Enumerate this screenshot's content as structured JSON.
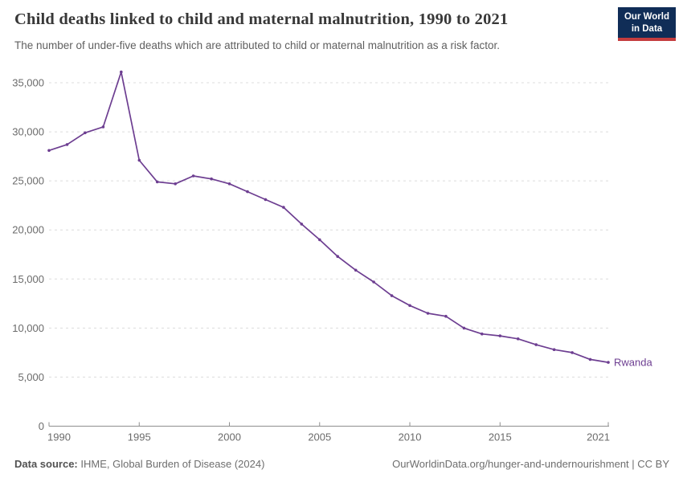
{
  "header": {
    "title": "Child deaths linked to child and maternal malnutrition, 1990 to 2021",
    "subtitle": "The number of under-five deaths which are attributed to child or maternal malnutrition as a risk factor."
  },
  "logo": {
    "line1": "Our World",
    "line2": "in Data"
  },
  "footer": {
    "source_label": "Data source:",
    "source_text": " IHME, Global Burden of Disease (2024)",
    "credit": "OurWorldinData.org/hunger-and-undernourishment | CC BY"
  },
  "colors": {
    "series_line": "#6d3e91",
    "gridline": "#dcdcdc",
    "axis": "#8f8f8f",
    "tick_label": "#6b6b6b",
    "logo_bg": "#102d57",
    "logo_red": "#c43c3e"
  },
  "chart_data": {
    "type": "line",
    "title": "Child deaths linked to child and maternal malnutrition, 1990 to 2021",
    "subtitle": "The number of under-five deaths which are attributed to child or maternal malnutrition as a risk factor.",
    "xlabel": "",
    "ylabel": "",
    "x": [
      1990,
      1991,
      1992,
      1993,
      1994,
      1995,
      1996,
      1997,
      1998,
      1999,
      2000,
      2001,
      2002,
      2003,
      2004,
      2005,
      2006,
      2007,
      2008,
      2009,
      2010,
      2011,
      2012,
      2013,
      2014,
      2015,
      2016,
      2017,
      2018,
      2019,
      2020,
      2021
    ],
    "series": [
      {
        "name": "Rwanda",
        "color": "#6d3e91",
        "values": [
          28100,
          28700,
          29900,
          30500,
          36100,
          27100,
          24900,
          24700,
          25500,
          25200,
          24700,
          23900,
          23100,
          22300,
          20600,
          19000,
          17300,
          15900,
          14700,
          13300,
          12300,
          11500,
          11200,
          10000,
          9400,
          9200,
          8900,
          8300,
          7800,
          7500,
          6800,
          6500
        ]
      }
    ],
    "xticks": [
      1990,
      1995,
      2000,
      2005,
      2010,
      2015,
      2021
    ],
    "yticks": [
      0,
      5000,
      10000,
      15000,
      20000,
      25000,
      30000,
      35000
    ],
    "xlim": [
      1990,
      2021
    ],
    "ylim": [
      0,
      36500
    ],
    "grid": "horizontal-dashed",
    "legend_position": "end-of-line-label"
  }
}
